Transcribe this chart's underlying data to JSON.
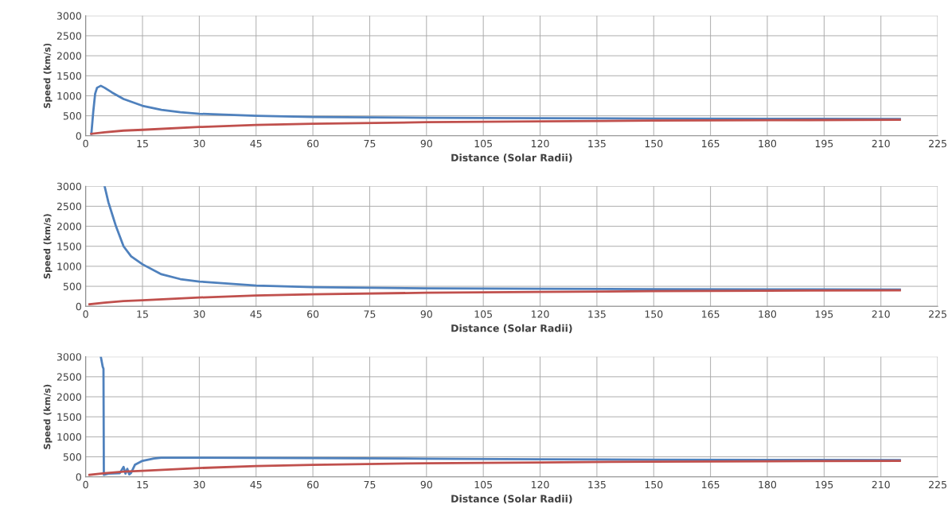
{
  "chart_data": [
    {
      "type": "line",
      "xlabel": "Distance (Solar Radii)",
      "ylabel": "Speed (km/s)",
      "xlim": [
        0,
        225
      ],
      "xticks": [
        0,
        15,
        30,
        45,
        60,
        75,
        90,
        105,
        120,
        135,
        150,
        165,
        180,
        195,
        210,
        225
      ],
      "ylim": [
        0,
        3000
      ],
      "yticks": [
        0,
        500,
        1000,
        1500,
        2000,
        2500,
        3000
      ],
      "grid": true,
      "legend": false,
      "series": [
        {
          "color": "#4f81bd",
          "x": [
            1.5,
            2,
            2.5,
            3,
            4,
            5,
            7,
            10,
            15,
            20,
            25,
            30,
            45,
            60,
            90,
            120,
            150,
            180,
            215
          ],
          "values": [
            50,
            600,
            1050,
            1200,
            1250,
            1200,
            1080,
            920,
            750,
            650,
            590,
            550,
            500,
            470,
            450,
            440,
            430,
            425,
            420
          ]
        },
        {
          "color": "#c0504d",
          "x": [
            1.5,
            5,
            10,
            15,
            30,
            45,
            60,
            90,
            120,
            150,
            180,
            215
          ],
          "values": [
            50,
            90,
            130,
            150,
            220,
            270,
            300,
            340,
            360,
            380,
            390,
            400
          ]
        }
      ]
    },
    {
      "type": "line",
      "xlabel": "Distance (Solar Radii)",
      "ylabel": "Speed (km/s)",
      "xlim": [
        0,
        225
      ],
      "xticks": [
        0,
        15,
        30,
        45,
        60,
        75,
        90,
        105,
        120,
        135,
        150,
        165,
        180,
        195,
        210,
        225
      ],
      "ylim": [
        0,
        3000
      ],
      "yticks": [
        0,
        500,
        1000,
        1500,
        2000,
        2500,
        3000
      ],
      "grid": true,
      "legend": false,
      "series": [
        {
          "color": "#4f81bd",
          "x": [
            5,
            6,
            7,
            8,
            10,
            12,
            15,
            20,
            25,
            30,
            45,
            60,
            90,
            120,
            150,
            180,
            215
          ],
          "values": [
            3000,
            2600,
            2300,
            2000,
            1500,
            1250,
            1050,
            800,
            680,
            620,
            520,
            480,
            450,
            440,
            430,
            425,
            420
          ]
        },
        {
          "color": "#c0504d",
          "x": [
            1,
            5,
            10,
            15,
            30,
            45,
            60,
            90,
            120,
            150,
            180,
            215
          ],
          "values": [
            50,
            90,
            130,
            150,
            220,
            270,
            300,
            340,
            360,
            380,
            390,
            400
          ]
        }
      ]
    },
    {
      "type": "line",
      "xlabel": "Distance (Solar Radii)",
      "ylabel": "Speed (km/s)",
      "xlim": [
        0,
        225
      ],
      "xticks": [
        0,
        15,
        30,
        45,
        60,
        75,
        90,
        105,
        120,
        135,
        150,
        165,
        180,
        195,
        210,
        225
      ],
      "ylim": [
        0,
        3000
      ],
      "yticks": [
        0,
        500,
        1000,
        1500,
        2000,
        2500,
        3000
      ],
      "grid": true,
      "legend": false,
      "series": [
        {
          "color": "#4f81bd",
          "x": [
            4,
            4.5,
            4.7,
            4.8,
            6,
            9,
            10,
            10.5,
            11,
            11.5,
            12,
            13,
            15,
            18,
            20,
            30,
            60,
            90,
            120,
            150,
            180,
            215
          ],
          "values": [
            3000,
            2750,
            2700,
            50,
            80,
            90,
            250,
            80,
            200,
            60,
            100,
            300,
            400,
            460,
            480,
            480,
            470,
            455,
            440,
            430,
            425,
            420
          ]
        },
        {
          "color": "#c0504d",
          "x": [
            1,
            5,
            10,
            15,
            30,
            45,
            60,
            90,
            120,
            150,
            180,
            215
          ],
          "values": [
            50,
            90,
            130,
            150,
            220,
            270,
            300,
            340,
            360,
            380,
            390,
            400
          ]
        }
      ]
    }
  ]
}
